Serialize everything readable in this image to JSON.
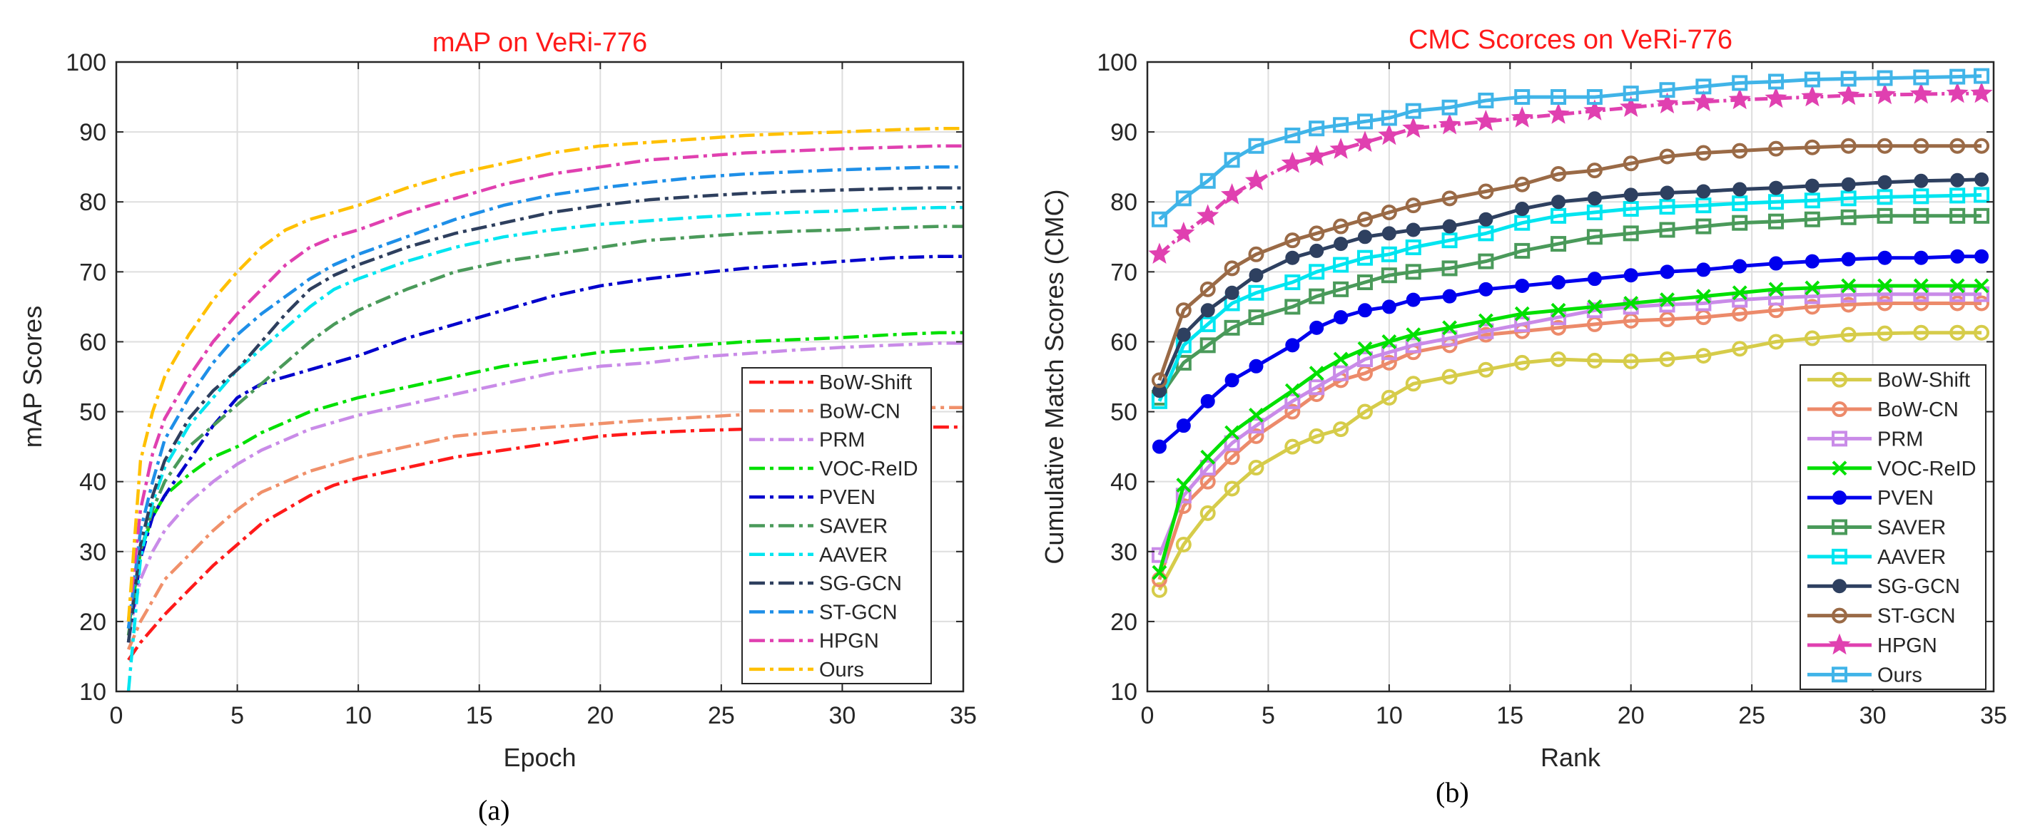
{
  "panels": [
    {
      "caption": "(a)"
    },
    {
      "caption": "(b)"
    }
  ],
  "chart_data": [
    {
      "type": "line",
      "title": "mAP on VeRi-776",
      "title_color": "#ff1a1a",
      "xlabel": "Epoch",
      "ylabel": "mAP Scores",
      "xlim": [
        0,
        35
      ],
      "ylim": [
        10,
        100
      ],
      "xticks": [
        0,
        5,
        10,
        15,
        20,
        25,
        30,
        35
      ],
      "yticks": [
        10,
        20,
        30,
        40,
        50,
        60,
        70,
        80,
        90,
        100
      ],
      "grid": true,
      "legend_position": "bottom-right",
      "x": [
        0.5,
        1,
        1.5,
        2,
        3,
        4,
        5,
        6,
        7,
        8,
        9,
        10,
        12,
        14,
        16,
        18,
        20,
        22,
        24,
        26,
        28,
        30,
        32,
        34,
        35
      ],
      "series": [
        {
          "name": "BoW-Shift",
          "color": "#ff1a1a",
          "values": [
            14.5,
            17,
            19,
            21,
            24.5,
            28,
            31,
            34,
            36,
            38,
            39.5,
            40.5,
            42,
            43.5,
            44.5,
            45.5,
            46.5,
            47,
            47.3,
            47.5,
            47.6,
            47.7,
            47.8,
            47.8,
            47.8
          ]
        },
        {
          "name": "BoW-CN",
          "color": "#f0906a",
          "values": [
            16,
            20,
            23,
            26,
            29.5,
            33,
            36,
            38.5,
            40,
            41.5,
            42.5,
            43.5,
            45,
            46.5,
            47.2,
            47.8,
            48.3,
            48.8,
            49.2,
            49.6,
            50,
            50.3,
            50.5,
            50.6,
            50.6
          ]
        },
        {
          "name": "PRM",
          "color": "#c98be8",
          "values": [
            18,
            26,
            30,
            33,
            37,
            40,
            42.5,
            44.5,
            46,
            47.5,
            48.5,
            49.5,
            51,
            52.5,
            54,
            55.5,
            56.5,
            57,
            57.8,
            58.3,
            58.8,
            59.2,
            59.5,
            59.8,
            59.8
          ]
        },
        {
          "name": "VOC-ReID",
          "color": "#00e000",
          "values": [
            19,
            30,
            35,
            38,
            41,
            43.5,
            45,
            47,
            48.5,
            50,
            51,
            52,
            53.5,
            55,
            56.5,
            57.5,
            58.5,
            59,
            59.5,
            60,
            60.3,
            60.6,
            61,
            61.3,
            61.3
          ]
        },
        {
          "name": "PVEN",
          "color": "#0000cc",
          "values": [
            17,
            29,
            35,
            38,
            43,
            48,
            52,
            54,
            55,
            56,
            57,
            58,
            60.5,
            62.5,
            64.5,
            66.5,
            68,
            69,
            69.8,
            70.5,
            71,
            71.5,
            72,
            72.2,
            72.2
          ]
        },
        {
          "name": "SAVER",
          "color": "#4a9a5a",
          "values": [
            18,
            30,
            36,
            40,
            45,
            48,
            51,
            54,
            57,
            60,
            62.5,
            64.5,
            67.5,
            70,
            71.5,
            72.5,
            73.5,
            74.5,
            75,
            75.5,
            75.8,
            76,
            76.3,
            76.5,
            76.5
          ]
        },
        {
          "name": "AAVER",
          "color": "#00e5f0",
          "values": [
            10,
            29,
            37,
            42,
            48,
            52,
            56,
            59,
            62,
            65,
            67.5,
            69,
            71.5,
            73.5,
            75,
            76,
            76.8,
            77.3,
            77.8,
            78.2,
            78.5,
            78.7,
            79,
            79.2,
            79.2
          ]
        },
        {
          "name": "SG-GCN",
          "color": "#2e3f5e",
          "values": [
            17,
            31,
            38,
            43,
            49,
            53,
            56,
            60,
            64,
            67.5,
            69.5,
            71,
            73.5,
            75.5,
            77,
            78.5,
            79.5,
            80.3,
            80.8,
            81.2,
            81.5,
            81.7,
            81.9,
            82,
            82
          ]
        },
        {
          "name": "ST-GCN",
          "color": "#1e8fe8",
          "values": [
            19,
            33,
            40,
            46,
            52,
            57,
            61,
            64,
            66.5,
            69,
            71,
            72.5,
            75,
            77.5,
            79.5,
            81,
            82,
            82.8,
            83.5,
            84,
            84.3,
            84.6,
            84.8,
            85,
            85
          ]
        },
        {
          "name": "HPGN",
          "color": "#e040b0",
          "values": [
            20,
            36,
            44,
            49,
            55,
            60,
            64,
            67.5,
            71,
            73.5,
            75,
            76,
            78.5,
            80.5,
            82.5,
            84,
            85,
            86,
            86.5,
            87,
            87.3,
            87.6,
            87.8,
            88,
            88
          ]
        },
        {
          "name": "Ours",
          "color": "#ffc000",
          "values": [
            20,
            43,
            50,
            55,
            61,
            66,
            70,
            73.5,
            76,
            77.5,
            78.5,
            79.5,
            82,
            84,
            85.5,
            87,
            88,
            88.5,
            89,
            89.5,
            89.8,
            90,
            90.3,
            90.5,
            90.5
          ]
        }
      ]
    },
    {
      "type": "line",
      "title": "CMC Scorces on VeRi-776",
      "title_color": "#ff1a1a",
      "xlabel": "Rank",
      "ylabel": "Cumulative Match Scores (CMC)",
      "xlim": [
        0,
        35
      ],
      "ylim": [
        10,
        100
      ],
      "xticks": [
        0,
        5,
        10,
        15,
        20,
        25,
        30,
        35
      ],
      "yticks": [
        10,
        20,
        30,
        40,
        50,
        60,
        70,
        80,
        90,
        100
      ],
      "grid": true,
      "legend_position": "bottom-right",
      "x": [
        0.5,
        1.5,
        2.5,
        3.5,
        4.5,
        6,
        7,
        8,
        9,
        10,
        11,
        12.5,
        14,
        15.5,
        17,
        18.5,
        20,
        21.5,
        23,
        24.5,
        26,
        27.5,
        29,
        30.5,
        32,
        33.5,
        34.5
      ],
      "series": [
        {
          "name": "BoW-Shift",
          "color": "#d6cc4a",
          "marker": "circle",
          "values": [
            24.5,
            31,
            35.5,
            39,
            42,
            45,
            46.5,
            47.5,
            50,
            52,
            54,
            55,
            56,
            57,
            57.5,
            57.3,
            57.2,
            57.5,
            58,
            59,
            60,
            60.5,
            61,
            61.2,
            61.3,
            61.3,
            61.3
          ]
        },
        {
          "name": "BoW-CN",
          "color": "#ec8a6a",
          "marker": "circle",
          "values": [
            26,
            36.5,
            40,
            43.5,
            46.5,
            50,
            52.5,
            54.5,
            55.5,
            57,
            58.5,
            59.5,
            61,
            61.5,
            62,
            62.5,
            63,
            63.2,
            63.5,
            64,
            64.5,
            65,
            65.3,
            65.5,
            65.5,
            65.5,
            65.5
          ]
        },
        {
          "name": "PRM",
          "color": "#c98be8",
          "marker": "square",
          "values": [
            29.5,
            38,
            42,
            45.5,
            48,
            51.5,
            53.5,
            55.5,
            57.5,
            58.5,
            59.5,
            60.5,
            61.5,
            62.5,
            63.5,
            64.5,
            65,
            65.3,
            65.5,
            66,
            66.3,
            66.5,
            66.7,
            66.8,
            66.8,
            66.8,
            66.8
          ]
        },
        {
          "name": "VOC-ReID",
          "color": "#00e000",
          "marker": "x",
          "values": [
            27,
            39.5,
            43.5,
            47,
            49.5,
            53,
            55.5,
            57.5,
            59,
            60,
            61,
            62,
            63,
            64,
            64.5,
            65,
            65.5,
            66,
            66.5,
            67,
            67.5,
            67.7,
            68,
            68,
            68,
            68,
            68
          ]
        },
        {
          "name": "PVEN",
          "color": "#0000ee",
          "marker": "dot",
          "values": [
            45,
            48,
            51.5,
            54.5,
            56.5,
            59.5,
            62,
            63.5,
            64.5,
            65,
            66,
            66.5,
            67.5,
            68,
            68.5,
            69,
            69.5,
            70,
            70.3,
            70.8,
            71.2,
            71.5,
            71.8,
            72,
            72,
            72.2,
            72.2
          ]
        },
        {
          "name": "SAVER",
          "color": "#4a9a5a",
          "marker": "square",
          "values": [
            52,
            57,
            59.5,
            62,
            63.5,
            65,
            66.5,
            67.5,
            68.5,
            69.5,
            70,
            70.5,
            71.5,
            73,
            74,
            75,
            75.5,
            76,
            76.5,
            77,
            77.2,
            77.5,
            77.8,
            78,
            78,
            78,
            78
          ]
        },
        {
          "name": "AAVER",
          "color": "#00e5f0",
          "marker": "square",
          "values": [
            51.5,
            59.5,
            62.5,
            65.5,
            67,
            68.5,
            70,
            71,
            72,
            72.5,
            73.5,
            74.5,
            75.5,
            77,
            78,
            78.5,
            79,
            79.3,
            79.5,
            79.8,
            80,
            80.2,
            80.5,
            80.7,
            80.8,
            80.9,
            81
          ]
        },
        {
          "name": "SG-GCN",
          "color": "#2e4060",
          "marker": "dot",
          "values": [
            53,
            61,
            64.5,
            67,
            69.5,
            72,
            73,
            74,
            75,
            75.5,
            76,
            76.5,
            77.5,
            79,
            80,
            80.5,
            81,
            81.3,
            81.5,
            81.8,
            82,
            82.3,
            82.5,
            82.8,
            83,
            83.1,
            83.2
          ]
        },
        {
          "name": "ST-GCN",
          "color": "#9a6a46",
          "marker": "circle",
          "values": [
            54.5,
            64.5,
            67.5,
            70.5,
            72.5,
            74.5,
            75.5,
            76.5,
            77.5,
            78.5,
            79.5,
            80.5,
            81.5,
            82.5,
            84,
            84.5,
            85.5,
            86.5,
            87,
            87.3,
            87.6,
            87.8,
            88,
            88,
            88,
            88,
            88
          ]
        },
        {
          "name": "HPGN",
          "color": "#e040b0",
          "marker": "star",
          "values": [
            72.5,
            75.5,
            78,
            81,
            83,
            85.5,
            86.5,
            87.5,
            88.5,
            89.5,
            90.5,
            91,
            91.5,
            92,
            92.5,
            93,
            93.5,
            94,
            94.3,
            94.6,
            94.8,
            95,
            95.2,
            95.3,
            95.4,
            95.5,
            95.5
          ]
        },
        {
          "name": "Ours",
          "color": "#40b4e8",
          "marker": "square",
          "values": [
            77.5,
            80.5,
            83,
            86,
            88,
            89.5,
            90.5,
            91,
            91.5,
            92,
            93,
            93.5,
            94.5,
            95,
            95,
            95,
            95.5,
            96,
            96.5,
            97,
            97.2,
            97.5,
            97.6,
            97.7,
            97.8,
            97.9,
            98
          ]
        }
      ]
    }
  ]
}
